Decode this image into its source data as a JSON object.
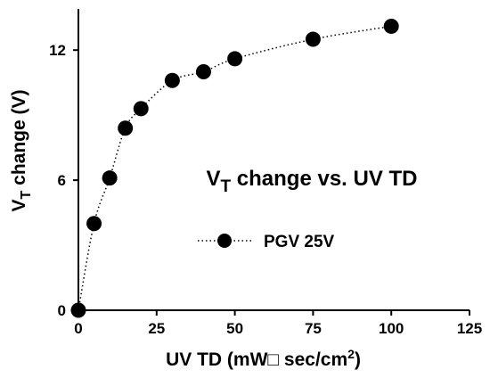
{
  "chart_data": {
    "type": "scatter",
    "title": "",
    "xlabel": {
      "main": "UV TD (mW□ sec/cm",
      "sup": "2",
      "tail": ")"
    },
    "ylabel": {
      "pre": "V",
      "sub": "T",
      "post": " change (V)"
    },
    "annotation": {
      "pre": "V",
      "sub": "T",
      "post": " change vs. UV TD"
    },
    "xlim": [
      0,
      125
    ],
    "ylim": [
      0,
      14
    ],
    "x_ticks": [
      0,
      25,
      50,
      75,
      100,
      125
    ],
    "y_ticks": [
      0,
      6,
      12
    ],
    "grid": false,
    "legend_position": "center-right",
    "series": [
      {
        "name": "PGV 25V",
        "line_style": "dotted",
        "marker": "filled-circle",
        "color": "#000000",
        "x": [
          0,
          5,
          10,
          15,
          20,
          30,
          40,
          50,
          75,
          100
        ],
        "y": [
          0,
          4.0,
          6.1,
          8.4,
          9.3,
          10.6,
          11.0,
          11.6,
          12.5,
          13.1
        ]
      }
    ]
  }
}
